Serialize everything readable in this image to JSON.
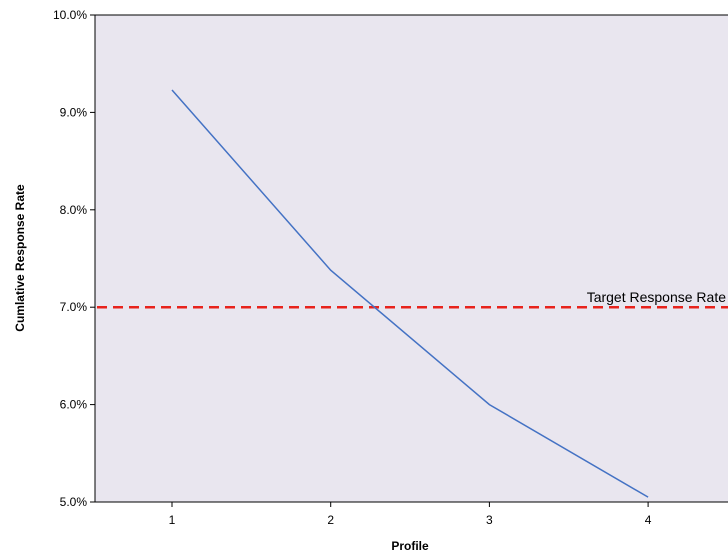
{
  "chart_data": {
    "type": "line",
    "x": [
      1,
      2,
      3,
      4
    ],
    "series": [
      {
        "values": [
          9.23,
          7.38,
          6.0,
          5.05
        ],
        "color": "#4472c4"
      }
    ],
    "xlabel": "Profile",
    "ylabel": "Cumlative Response Rate",
    "xticks": [
      "1",
      "2",
      "3",
      "4"
    ],
    "yticks": [
      "5.0%",
      "6.0%",
      "7.0%",
      "8.0%",
      "9.0%",
      "10.0%"
    ],
    "xlim": [
      0.5,
      4.5
    ],
    "ylim": [
      5.0,
      10.0
    ],
    "grid": false,
    "plot_background": "#e9e6ef",
    "reference_line": {
      "value": 7.0,
      "label": "Target Response Rate",
      "color": "#e8231c",
      "style": "dashed"
    }
  }
}
